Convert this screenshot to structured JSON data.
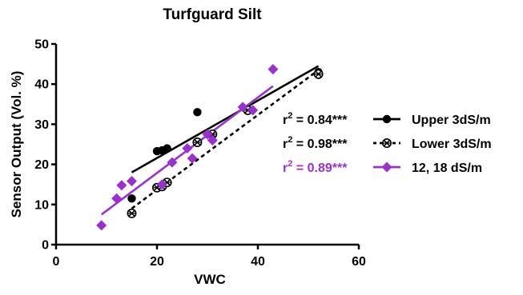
{
  "chart_data": {
    "type": "scatter",
    "title": "Turfguard Silt",
    "xlabel": "VWC",
    "ylabel": "Sensor Output (Vol. %)",
    "xlim": [
      0,
      60
    ],
    "ylim": [
      0,
      50
    ],
    "xticks": [
      0,
      20,
      40,
      60
    ],
    "yticks": [
      0,
      10,
      20,
      30,
      40,
      50
    ],
    "grid": false,
    "legend_position": "right",
    "series": [
      {
        "name": "Upper 3dS/m",
        "marker": "filled-circle",
        "color": "#000000",
        "line_style": "solid",
        "r2_label": "r",
        "r2_sup": "2",
        "r2_value": " = 0.84***",
        "points": [
          [
            15,
            11.5
          ],
          [
            20,
            23.3
          ],
          [
            21,
            23.5
          ],
          [
            22,
            24.0
          ],
          [
            28,
            33.0
          ],
          [
            52,
            43.0
          ],
          [
            52,
            42.3
          ]
        ],
        "fit": [
          [
            15,
            18.0
          ],
          [
            52,
            44.5
          ]
        ]
      },
      {
        "name": "Lower 3dS/m",
        "marker": "crossed-circle",
        "color": "#000000",
        "line_style": "dashed",
        "r2_label": "r",
        "r2_sup": "2",
        "r2_value": " = 0.98***",
        "points": [
          [
            15,
            7.8
          ],
          [
            20,
            14.2
          ],
          [
            21,
            14.5
          ],
          [
            22,
            15.5
          ],
          [
            28,
            25.5
          ],
          [
            31,
            27.5
          ],
          [
            38,
            33.5
          ],
          [
            52,
            42.5
          ]
        ],
        "fit": [
          [
            15,
            9.0
          ],
          [
            52,
            43.5
          ]
        ]
      },
      {
        "name": "12, 18 dS/m",
        "marker": "diamond",
        "color": "#9b30d0",
        "line_style": "solid",
        "r2_label": "r",
        "r2_sup": "2",
        "r2_value": " = 0.89***",
        "points": [
          [
            9,
            4.8
          ],
          [
            12,
            11.5
          ],
          [
            13,
            14.8
          ],
          [
            15,
            15.8
          ],
          [
            21,
            15.0
          ],
          [
            23,
            20.5
          ],
          [
            26,
            24.0
          ],
          [
            27,
            21.5
          ],
          [
            30,
            27.5
          ],
          [
            31,
            26.0
          ],
          [
            37,
            34.3
          ],
          [
            39,
            33.5
          ],
          [
            43,
            43.7
          ]
        ],
        "fit": [
          [
            9,
            7.5
          ],
          [
            43,
            39.5
          ]
        ]
      }
    ]
  }
}
